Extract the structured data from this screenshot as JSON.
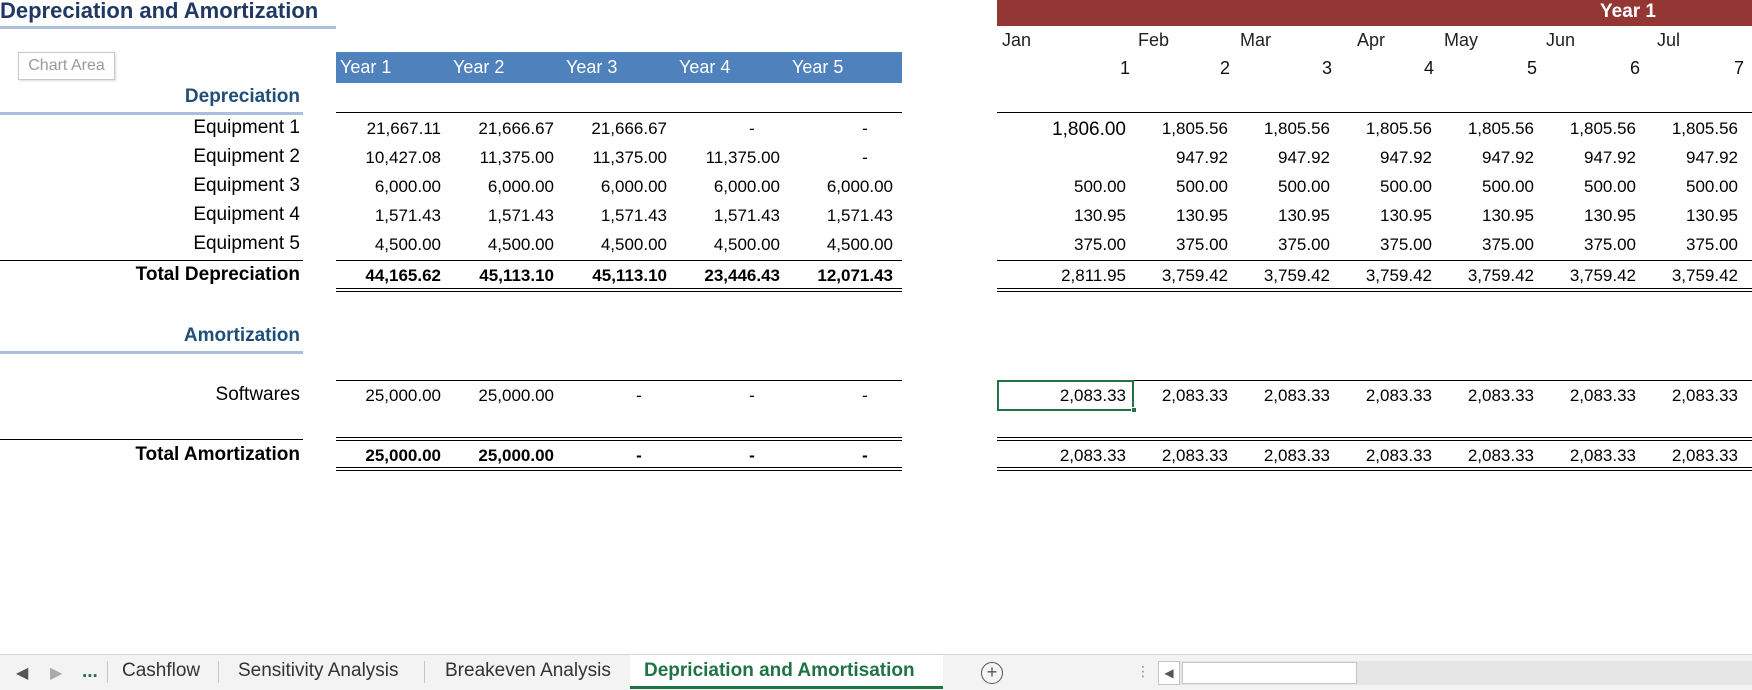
{
  "title": "Depreciation and Amortization",
  "chart_area_label": "Chart Area",
  "years": [
    "Year 1",
    "Year 2",
    "Year 3",
    "Year 4",
    "Year 5"
  ],
  "depreciation": {
    "label": "Depreciation",
    "rows": [
      {
        "name": "Equipment 1",
        "annual": [
          "21,667.11",
          "21,666.67",
          "21,666.67",
          "-",
          "-"
        ],
        "monthly": [
          "1,806.00",
          "1,805.56",
          "1,805.56",
          "1,805.56",
          "1,805.56",
          "1,805.56",
          "1,805.56"
        ]
      },
      {
        "name": "Equipment 2",
        "annual": [
          "10,427.08",
          "11,375.00",
          "11,375.00",
          "11,375.00",
          "-"
        ],
        "monthly": [
          "",
          "947.92",
          "947.92",
          "947.92",
          "947.92",
          "947.92",
          "947.92"
        ]
      },
      {
        "name": "Equipment 3",
        "annual": [
          "6,000.00",
          "6,000.00",
          "6,000.00",
          "6,000.00",
          "6,000.00"
        ],
        "monthly": [
          "500.00",
          "500.00",
          "500.00",
          "500.00",
          "500.00",
          "500.00",
          "500.00"
        ]
      },
      {
        "name": "Equipment 4",
        "annual": [
          "1,571.43",
          "1,571.43",
          "1,571.43",
          "1,571.43",
          "1,571.43"
        ],
        "monthly": [
          "130.95",
          "130.95",
          "130.95",
          "130.95",
          "130.95",
          "130.95",
          "130.95"
        ]
      },
      {
        "name": "Equipment 5",
        "annual": [
          "4,500.00",
          "4,500.00",
          "4,500.00",
          "4,500.00",
          "4,500.00"
        ],
        "monthly": [
          "375.00",
          "375.00",
          "375.00",
          "375.00",
          "375.00",
          "375.00",
          "375.00"
        ]
      }
    ],
    "total": {
      "name": "Total Depreciation",
      "annual": [
        "44,165.62",
        "45,113.10",
        "45,113.10",
        "23,446.43",
        "12,071.43"
      ],
      "monthly": [
        "2,811.95",
        "3,759.42",
        "3,759.42",
        "3,759.42",
        "3,759.42",
        "3,759.42",
        "3,759.42"
      ]
    }
  },
  "amortization": {
    "label": "Amortization",
    "rows": [
      {
        "name": "Softwares",
        "annual": [
          "25,000.00",
          "25,000.00",
          "-",
          "-",
          "-"
        ],
        "monthly": [
          "2,083.33",
          "2,083.33",
          "2,083.33",
          "2,083.33",
          "2,083.33",
          "2,083.33",
          "2,083.33"
        ]
      }
    ],
    "total": {
      "name": "Total Amortization",
      "annual": [
        "25,000.00",
        "25,000.00",
        "-",
        "-",
        "-"
      ],
      "monthly": [
        "2,083.33",
        "2,083.33",
        "2,083.33",
        "2,083.33",
        "2,083.33",
        "2,083.33",
        "2,083.33"
      ]
    }
  },
  "monthly": {
    "year_label": "Year 1",
    "months": [
      "Jan",
      "Feb",
      "Mar",
      "Apr",
      "May",
      "Jun",
      "Jul"
    ],
    "month_numbers": [
      "1",
      "2",
      "3",
      "4",
      "5",
      "6",
      "7"
    ]
  },
  "tabs": {
    "ellipsis": "...",
    "items": [
      "Cashflow",
      "Sensitivity Analysis",
      "Breakeven Analysis",
      "Depriciation and Amortisation"
    ],
    "active": "Depriciation and Amortisation",
    "add_symbol": "+"
  }
}
